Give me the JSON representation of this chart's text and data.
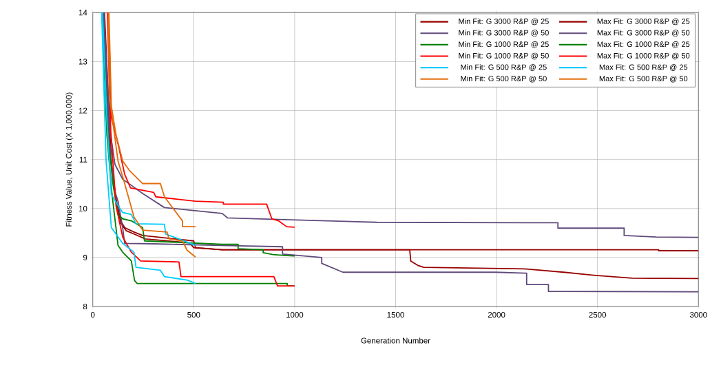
{
  "chart_data": {
    "type": "line",
    "xlabel": "Generation Number",
    "ylabel": "Fitness Value, Unit Cost (X 1,000,000)",
    "xlim": [
      0,
      3000
    ],
    "xticks": [
      0,
      500,
      1000,
      1500,
      2000,
      2500,
      3000
    ],
    "ylim": [
      8,
      14
    ],
    "yticks": [
      8,
      9,
      10,
      11,
      12,
      13,
      14
    ],
    "grid": true,
    "legend": "top right",
    "marker": "none",
    "line_style": "solid",
    "series": [
      {
        "name": "Min Fit: G 3000 R&P @ 25",
        "color": "#990000",
        "x": [
          58,
          92,
          118,
          140,
          165,
          210,
          260,
          480,
          500,
          641,
          1570,
          1575,
          1610,
          1640,
          2136,
          2333,
          2481,
          2672,
          3000
        ],
        "values": [
          14,
          10.9,
          10.1,
          9.7,
          9.55,
          9.47,
          9.38,
          9.3,
          9.2,
          9.16,
          9.16,
          8.93,
          8.84,
          8.8,
          8.77,
          8.7,
          8.64,
          8.58,
          8.57
        ]
      },
      {
        "name": "Max Fit: G 3000 R&P @ 25",
        "color": "#990000",
        "x": [
          55,
          90,
          115,
          138,
          158,
          204,
          247,
          500,
          509,
          641,
          1570,
          2803,
          2803,
          3000
        ],
        "values": [
          14,
          11.0,
          10.2,
          9.75,
          9.61,
          9.52,
          9.45,
          9.34,
          9.2,
          9.16,
          9.16,
          9.16,
          9.14,
          9.14
        ]
      },
      {
        "name": "Min Fit: G 3000 R&P @ 50",
        "color": "#604a7b",
        "x": [
          52,
          80,
          105,
          125,
          148,
          158,
          300,
          600,
          940,
          940,
          1134,
          1134,
          1239,
          1994,
          2149,
          2149,
          2257,
          2257,
          3000
        ],
        "values": [
          14,
          11.5,
          10.4,
          10.15,
          9.61,
          9.29,
          9.28,
          9.25,
          9.22,
          9.07,
          9.0,
          8.88,
          8.7,
          8.7,
          8.68,
          8.45,
          8.45,
          8.31,
          8.3
        ]
      },
      {
        "name": "Max Fit: G 3000 R&P @ 50",
        "color": "#604a7b",
        "x": [
          55,
          85,
          110,
          148,
          250,
          355,
          641,
          667,
          980,
          1407,
          2304,
          2304,
          2632,
          2632,
          2790,
          3000
        ],
        "values": [
          14,
          11.6,
          10.9,
          10.6,
          10.3,
          10.02,
          9.9,
          9.81,
          9.77,
          9.72,
          9.71,
          9.6,
          9.6,
          9.45,
          9.42,
          9.41
        ]
      },
      {
        "name": "Min Fit: G 1000 R&P @ 25",
        "color": "#008000",
        "x": [
          46,
          70,
          95,
          125,
          148,
          191,
          207,
          220,
          963,
          963,
          1000
        ],
        "values": [
          14,
          11.5,
          10.3,
          9.25,
          9.11,
          8.93,
          8.53,
          8.47,
          8.47,
          8.42,
          8.42
        ]
      },
      {
        "name": "Max Fit: G 1000 R&P @ 25",
        "color": "#008000",
        "x": [
          48,
          75,
          100,
          125,
          148,
          191,
          247,
          256,
          641,
          720,
          720,
          844,
          844,
          893,
          1000
        ],
        "values": [
          14,
          11.5,
          10.5,
          9.88,
          9.79,
          9.75,
          9.61,
          9.34,
          9.27,
          9.27,
          9.18,
          9.16,
          9.1,
          9.06,
          9.03
        ]
      },
      {
        "name": "Min Fit: G 1000 R&P @ 50",
        "color": "#ff0000",
        "x": [
          72,
          89,
          115,
          148,
          191,
          237,
          427,
          437,
          897,
          915,
          1000
        ],
        "values": [
          14,
          11.59,
          10.06,
          9.42,
          9.11,
          8.93,
          8.91,
          8.61,
          8.61,
          8.42,
          8.42
        ]
      },
      {
        "name": "Max Fit: G 1000 R&P @ 50",
        "color": "#ff0000",
        "x": [
          78,
          92,
          125,
          158,
          187,
          302,
          312,
          509,
          647,
          647,
          861,
          887,
          920,
          960,
          1000
        ],
        "values": [
          14,
          11.86,
          11.32,
          10.7,
          10.42,
          10.33,
          10.24,
          10.15,
          10.13,
          10.09,
          10.09,
          9.79,
          9.75,
          9.63,
          9.62
        ]
      },
      {
        "name": "Min Fit: G 500 R&P @ 25",
        "color": "#00ccff",
        "x": [
          44,
          66,
          92,
          148,
          204,
          214,
          335,
          355,
          467,
          509
        ],
        "values": [
          14,
          10.97,
          9.61,
          9.29,
          9.11,
          8.8,
          8.74,
          8.61,
          8.54,
          8.47
        ]
      },
      {
        "name": "Max Fit: G 500 R&P @ 25",
        "color": "#00ccff",
        "x": [
          48,
          70,
          92,
          125,
          148,
          191,
          214,
          355,
          361,
          401,
          509
        ],
        "values": [
          14,
          11.8,
          10.29,
          10.06,
          9.92,
          9.88,
          9.69,
          9.68,
          9.48,
          9.42,
          9.25
        ]
      },
      {
        "name": "Min Fit: G 500 R&P @ 50",
        "color": "#e46c0a",
        "x": [
          76,
          82,
          105,
          125,
          158,
          204,
          247,
          368,
          378,
          444,
          467,
          509
        ],
        "values": [
          14,
          12.32,
          11.59,
          10.97,
          10.51,
          9.83,
          9.56,
          9.52,
          9.38,
          9.34,
          9.15,
          9.01
        ]
      },
      {
        "name": "Max Fit: G 500 R&P @ 50",
        "color": "#e46c0a",
        "x": [
          80,
          92,
          115,
          148,
          181,
          247,
          335,
          355,
          444,
          444,
          509
        ],
        "values": [
          14,
          12.09,
          11.51,
          10.97,
          10.78,
          10.51,
          10.51,
          10.24,
          9.75,
          9.63,
          9.63
        ]
      }
    ]
  }
}
